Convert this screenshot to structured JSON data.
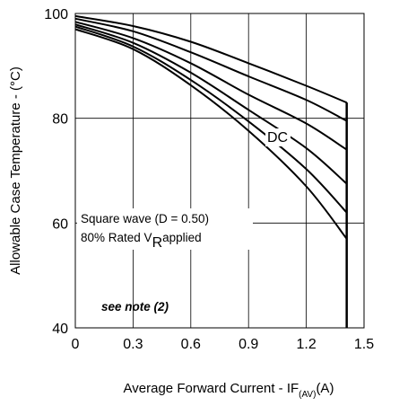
{
  "chart_data": {
    "type": "line",
    "title": "",
    "xlabel": "Average Forward Current - IF",
    "xlabel_sub": "(AV)",
    "xlabel_unit": "(A)",
    "ylabel": "Allowable Case Temperature - (°C)",
    "xlim": [
      0,
      1.5
    ],
    "ylim": [
      40,
      100
    ],
    "x_ticks": [
      0,
      0.3,
      0.6,
      0.9,
      1.2,
      1.5
    ],
    "x_tick_labels": [
      "0",
      "0.3",
      "0.6",
      "0.9",
      "1.2",
      "1.5"
    ],
    "y_ticks": [
      40,
      60,
      80,
      100
    ],
    "y_tick_labels": [
      "40",
      "60",
      "80",
      "100"
    ],
    "grid": true,
    "line_color": "#000000",
    "series": [
      {
        "x": [
          0,
          0.3,
          0.6,
          0.9,
          1.2,
          1.41
        ],
        "y": [
          99.5,
          97.6,
          94.6,
          90.5,
          86.2,
          83.0
        ]
      },
      {
        "x": [
          0,
          0.3,
          0.6,
          0.9,
          1.2,
          1.41
        ],
        "y": [
          99.0,
          96.6,
          92.6,
          88.0,
          83.5,
          79.5
        ]
      },
      {
        "x": [
          0,
          0.3,
          0.6,
          0.9,
          1.2,
          1.41
        ],
        "y": [
          98.4,
          95.3,
          90.5,
          84.5,
          79.0,
          74.0
        ]
      },
      {
        "x": [
          0,
          0.3,
          0.6,
          0.9,
          1.2,
          1.41
        ],
        "y": [
          97.9,
          94.4,
          88.7,
          81.6,
          74.3,
          67.5
        ]
      },
      {
        "x": [
          0,
          0.3,
          0.6,
          0.9,
          1.2,
          1.41
        ],
        "y": [
          97.5,
          93.7,
          87.3,
          79.4,
          70.3,
          62.0
        ]
      },
      {
        "x": [
          0,
          0.3,
          0.6,
          0.9,
          1.2,
          1.41
        ],
        "y": [
          97.0,
          93.2,
          86.3,
          77.6,
          67.0,
          57.0
        ]
      }
    ],
    "vertical_line": {
      "x": 1.41,
      "y_from": 40,
      "y_to": 83.0
    },
    "annotations": {
      "dc_label": "DC",
      "square_wave_line1": "Square wave (D = 0.50)",
      "square_wave_line2_a": "80% Rated V",
      "square_wave_line2_sub": "R",
      "square_wave_line2_b": "applied",
      "note": "see note (2)"
    }
  }
}
